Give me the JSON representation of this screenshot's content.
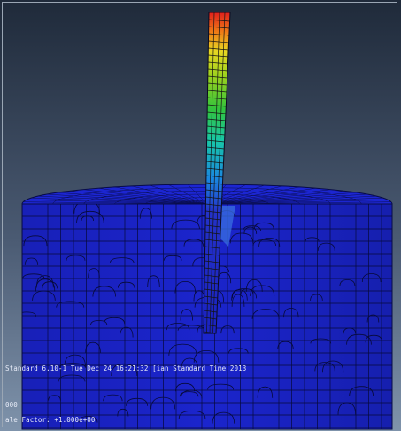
{
  "viewport": {
    "background_top_color": "#1f2a3a",
    "background_bottom_color": "#7f93ab",
    "solid_color": "#1a22c8",
    "mesh_line_color": "#070a3a"
  },
  "pile": {
    "contour_colors_top_to_bottom": [
      "#e0201c",
      "#f07a16",
      "#e8d622",
      "#9ad21e",
      "#32c23c",
      "#18c6a8",
      "#1a86e0",
      "#2432c8"
    ]
  },
  "info": {
    "version_line": "Standard 6.10-1    Tue Dec 24 16:21:32 [ian Standard Time 2013",
    "step_line": "000",
    "scale_line": "ale Factor: +1.000e+00"
  }
}
